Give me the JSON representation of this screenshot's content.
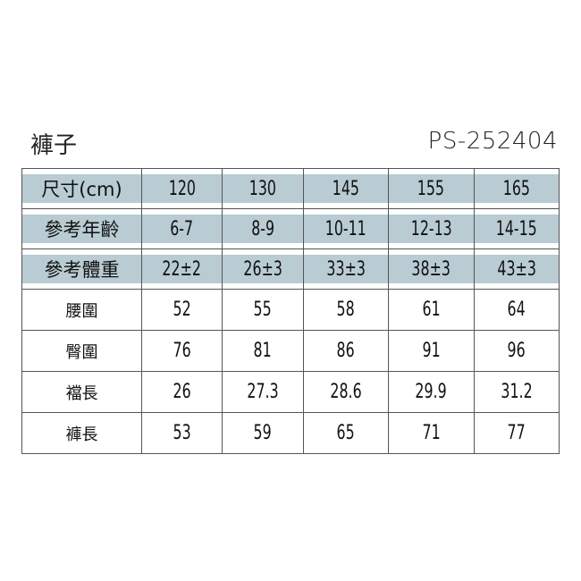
{
  "title": "褲子",
  "code": "PS-252404",
  "band_color": "#b9cbd3",
  "rows": [
    {
      "label": "尺寸(cm)",
      "values": [
        "120",
        "130",
        "145",
        "155",
        "165"
      ],
      "shaded": true
    },
    {
      "label": "參考年齡",
      "values": [
        "6-7",
        "8-9",
        "10-11",
        "12-13",
        "14-15"
      ],
      "shaded": true
    },
    {
      "label": "參考體重",
      "values": [
        "22±2",
        "26±3",
        "33±3",
        "38±3",
        "43±3"
      ],
      "shaded": true
    },
    {
      "label": "腰圍",
      "values": [
        "52",
        "55",
        "58",
        "61",
        "64"
      ],
      "shaded": false
    },
    {
      "label": "臀圍",
      "values": [
        "76",
        "81",
        "86",
        "91",
        "96"
      ],
      "shaded": false
    },
    {
      "label": "襠長",
      "values": [
        "26",
        "27.3",
        "28.6",
        "29.9",
        "31.2"
      ],
      "shaded": false
    },
    {
      "label": "褲長",
      "values": [
        "53",
        "59",
        "65",
        "71",
        "77"
      ],
      "shaded": false
    }
  ]
}
